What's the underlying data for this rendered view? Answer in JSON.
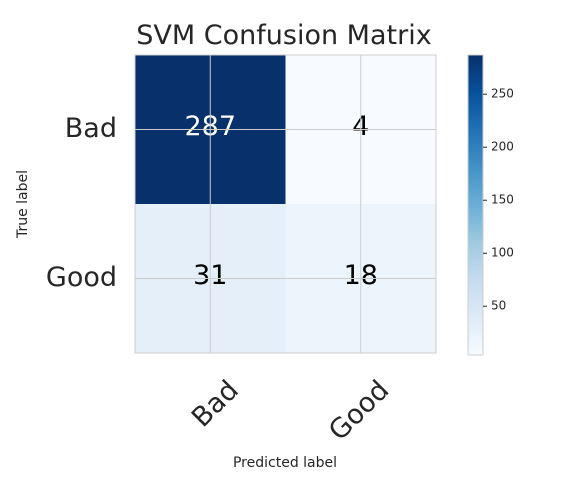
{
  "chart_data": {
    "type": "heatmap",
    "title": "SVM Confusion Matrix",
    "xlabel": "Predicted label",
    "ylabel": "True label",
    "x_categories": [
      "Bad",
      "Good"
    ],
    "y_categories": [
      "Bad",
      "Good"
    ],
    "values": [
      [
        287,
        4
      ],
      [
        31,
        18
      ]
    ],
    "colormap": "Blues",
    "color_min": "#f7fbff",
    "color_max": "#08306b",
    "cell_text_color_dark": "#ffffff",
    "cell_text_color_light": "#000000",
    "colorbar": {
      "range": [
        4,
        287
      ],
      "ticks": [
        50,
        100,
        150,
        200,
        250
      ],
      "tick_labels": [
        "50",
        "100",
        "150",
        "200",
        "250"
      ]
    },
    "grid": true,
    "x_tick_rotation_deg": -45
  }
}
